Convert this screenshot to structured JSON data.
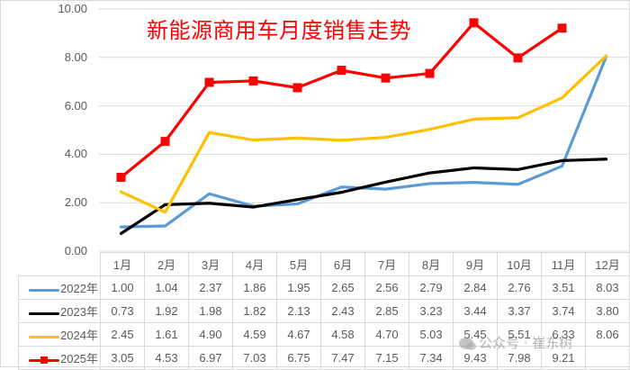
{
  "chart_data": {
    "type": "line",
    "title": "新能源商用车月度销售走势",
    "xlabel": "",
    "ylabel": "",
    "ylim": [
      0,
      10
    ],
    "yticks": [
      "0.00",
      "2.00",
      "4.00",
      "6.00",
      "8.00",
      "10.00"
    ],
    "grid": true,
    "legend_position": "data-table (bottom)",
    "categories": [
      "1月",
      "2月",
      "3月",
      "4月",
      "5月",
      "6月",
      "7月",
      "8月",
      "9月",
      "10月",
      "11月",
      "12月"
    ],
    "series": [
      {
        "name": "2022年",
        "color": "#5b9bd5",
        "marker": "none",
        "values": [
          1.0,
          1.04,
          2.37,
          1.86,
          1.95,
          2.65,
          2.56,
          2.79,
          2.84,
          2.76,
          3.51,
          8.03
        ]
      },
      {
        "name": "2023年",
        "color": "#000000",
        "marker": "none",
        "values": [
          0.73,
          1.92,
          1.98,
          1.82,
          2.13,
          2.43,
          2.85,
          3.23,
          3.44,
          3.37,
          3.74,
          3.8
        ]
      },
      {
        "name": "2024年",
        "color": "#ffc000",
        "marker": "none",
        "values": [
          2.45,
          1.61,
          4.9,
          4.59,
          4.67,
          4.58,
          4.7,
          5.03,
          5.45,
          5.51,
          6.33,
          8.06
        ]
      },
      {
        "name": "2025年",
        "color": "#ff0000",
        "marker": "square",
        "values": [
          3.05,
          4.53,
          6.97,
          7.03,
          6.75,
          7.47,
          7.15,
          7.34,
          9.43,
          7.98,
          9.21,
          null
        ]
      }
    ]
  },
  "table": {
    "header": [
      "1月",
      "2月",
      "3月",
      "4月",
      "5月",
      "6月",
      "7月",
      "8月",
      "9月",
      "10月",
      "11月",
      "12月"
    ],
    "rows": [
      {
        "label": "2022年",
        "cells": [
          "1.00",
          "1.04",
          "2.37",
          "1.86",
          "1.95",
          "2.65",
          "2.56",
          "2.79",
          "2.84",
          "2.76",
          "3.51",
          "8.03"
        ]
      },
      {
        "label": "2023年",
        "cells": [
          "0.73",
          "1.92",
          "1.98",
          "1.82",
          "2.13",
          "2.43",
          "2.85",
          "3.23",
          "3.44",
          "3.37",
          "3.74",
          "3.80"
        ]
      },
      {
        "label": "2024年",
        "cells": [
          "2.45",
          "1.61",
          "4.90",
          "4.59",
          "4.67",
          "4.58",
          "4.70",
          "5.03",
          "5.45",
          "5.51",
          "6.33",
          "8.06"
        ]
      },
      {
        "label": "2025年",
        "cells": [
          "3.05",
          "4.53",
          "6.97",
          "7.03",
          "6.75",
          "7.47",
          "7.15",
          "7.34",
          "9.43",
          "7.98",
          "9.21",
          ""
        ]
      }
    ]
  },
  "yaxis": {
    "ticks": [
      "10.00",
      "8.00",
      "6.00",
      "4.00",
      "2.00",
      "0.00"
    ]
  },
  "watermark": {
    "text": "公众号 · 崔东树",
    "icon": "wechat-icon"
  },
  "colors": {
    "title": "#ff0000",
    "grid": "#d9d9d9",
    "axis_text": "#595959"
  }
}
